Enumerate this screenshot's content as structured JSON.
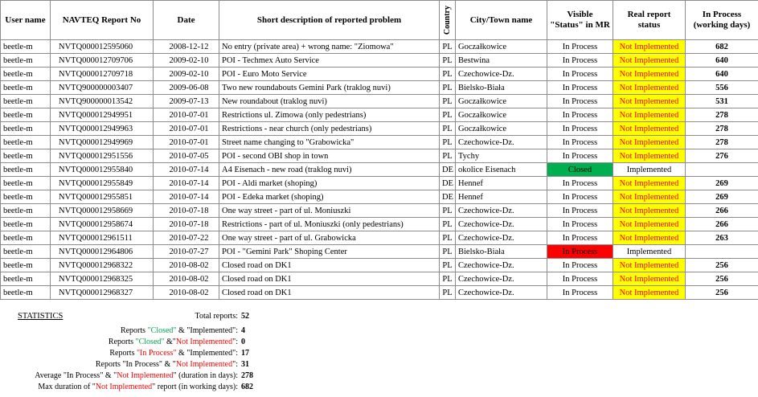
{
  "table": {
    "headers": [
      "User name",
      "NAVTEQ Report No",
      "Date",
      "Short description of reported problem",
      "Country",
      "City/Town name",
      "Visible \"Status\" in MR",
      "Real report status",
      "In Process (working days)"
    ],
    "rows": [
      {
        "cells": [
          "beetle-m",
          "NVTQ000012595060",
          "2008-12-12",
          "No entry (private area) + wrong name: \"Ziomowa\"",
          "PL",
          "Goczałkowice",
          "In Process",
          "Not Implemented",
          682
        ],
        "real_highlight": true
      },
      {
        "cells": [
          "beetle-m",
          "NVTQ000012709706",
          "2009-02-10",
          "POI - Techmex Auto Service",
          "PL",
          "Bestwina",
          "In Process",
          "Not Implemented",
          640
        ],
        "real_highlight": true
      },
      {
        "cells": [
          "beetle-m",
          "NVTQ000012709718",
          "2009-02-10",
          "POI - Euro Moto Service",
          "PL",
          "Czechowice-Dz.",
          "In Process",
          "Not Implemented",
          640
        ],
        "real_highlight": true
      },
      {
        "cells": [
          "beetle-m",
          "NVTQ900000003407",
          "2009-06-08",
          "Two new roundabouts Gemini Park (traklog nuvi)",
          "PL",
          "Bielsko-Biała",
          "In Process",
          "Not Implemented",
          556
        ],
        "real_highlight": true
      },
      {
        "cells": [
          "beetle-m",
          "NVTQ900000013542",
          "2009-07-13",
          "New roundabout (traklog nuvi)",
          "PL",
          "Goczałkowice",
          "In Process",
          "Not Implemented",
          531
        ],
        "real_highlight": true
      },
      {
        "cells": [
          "beetle-m",
          "NVTQ000012949951",
          "2010-07-01",
          "Restrictions ul. Zimowa (only pedestrians)",
          "PL",
          "Goczałkowice",
          "In Process",
          "Not Implemented",
          278
        ],
        "real_highlight": true
      },
      {
        "cells": [
          "beetle-m",
          "NVTQ000012949963",
          "2010-07-01",
          "Restrictions - near church (only pedestrians)",
          "PL",
          "Goczałkowice",
          "In Process",
          "Not Implemented",
          278
        ],
        "real_highlight": true
      },
      {
        "cells": [
          "beetle-m",
          "NVTQ000012949969",
          "2010-07-01",
          "Street name changing to \"Grabowicka\"",
          "PL",
          "Czechowice-Dz.",
          "In Process",
          "Not Implemented",
          278
        ],
        "real_highlight": true
      },
      {
        "cells": [
          "beetle-m",
          "NVTQ000012951556",
          "2010-07-05",
          "POI - second OBI shop in town",
          "PL",
          "Tychy",
          "In Process",
          "Not Implemented",
          276
        ],
        "real_highlight": true
      },
      {
        "cells": [
          "beetle-m",
          "NVTQ000012955840",
          "2010-07-14",
          "A4 Eisenach - new road (traklog nuvi)",
          "DE",
          "okolice Eisenach",
          "Closed",
          "Implemented",
          null
        ],
        "mr_color": "#00b050",
        "real_highlight": false
      },
      {
        "cells": [
          "beetle-m",
          "NVTQ000012955849",
          "2010-07-14",
          "POI - Aldi market (shoping)",
          "DE",
          "Hennef",
          "In Process",
          "Not Implemented",
          269
        ],
        "real_highlight": true
      },
      {
        "cells": [
          "beetle-m",
          "NVTQ000012955851",
          "2010-07-14",
          "POI - Edeka market (shoping)",
          "DE",
          "Hennef",
          "In Process",
          "Not Implemented",
          269
        ],
        "real_highlight": true
      },
      {
        "cells": [
          "beetle-m",
          "NVTQ000012958669",
          "2010-07-18",
          "One way street - part of ul. Moniuszki",
          "PL",
          "Czechowice-Dz.",
          "In Process",
          "Not Implemented",
          266
        ],
        "real_highlight": true
      },
      {
        "cells": [
          "beetle-m",
          "NVTQ000012958674",
          "2010-07-18",
          "Restrictions  - part of ul. Moniuszki (only pedestrians)",
          "PL",
          "Czechowice-Dz.",
          "In Process",
          "Not Implemented",
          266
        ],
        "real_highlight": true
      },
      {
        "cells": [
          "beetle-m",
          "NVTQ000012961511",
          "2010-07-22",
          "One way street - part of ul. Grabowicka",
          "PL",
          "Czechowice-Dz.",
          "In Process",
          "Not Implemented",
          263
        ],
        "real_highlight": true
      },
      {
        "cells": [
          "beetle-m",
          "NVTQ000012964806",
          "2010-07-27",
          "POI - \"Gemini Park\" Shoping Center",
          "PL",
          "Bielsko-Biała",
          "In Process",
          "Implemented",
          null
        ],
        "mr_color": "#ff0000",
        "real_highlight": false
      },
      {
        "cells": [
          "beetle-m",
          "NVTQ000012968322",
          "2010-08-02",
          "Closed road on DK1",
          "PL",
          "Czechowice-Dz.",
          "In Process",
          "Not Implemented",
          256
        ],
        "real_highlight": true
      },
      {
        "cells": [
          "beetle-m",
          "NVTQ000012968325",
          "2010-08-02",
          "Closed road on DK1",
          "PL",
          "Czechowice-Dz.",
          "In Process",
          "Not Implemented",
          256
        ],
        "real_highlight": true
      },
      {
        "cells": [
          "beetle-m",
          "NVTQ000012968327",
          "2010-08-02",
          "Closed road on DK1",
          "PL",
          "Czechowice-Dz.",
          "In Process",
          "Not Implemented",
          256
        ],
        "real_highlight": true
      }
    ]
  },
  "statistics": {
    "title": "STATISTICS",
    "total": {
      "label": "Total reports:",
      "value": 52
    },
    "items": [
      {
        "parts": [
          {
            "text": "Reports ",
            "color": "#000000"
          },
          {
            "text": "\"Closed\"",
            "color": "#00a050"
          },
          {
            "text": " & \"Implemented\":",
            "color": "#000000"
          }
        ],
        "value": 4
      },
      {
        "parts": [
          {
            "text": "Reports ",
            "color": "#000000"
          },
          {
            "text": "\"Closed\"",
            "color": "#00a050"
          },
          {
            "text": " &\"",
            "color": "#000000"
          },
          {
            "text": "Not Implemented",
            "color": "#ff0000"
          },
          {
            "text": "\":",
            "color": "#000000"
          }
        ],
        "value": 0
      },
      {
        "parts": [
          {
            "text": "Reports ",
            "color": "#000000"
          },
          {
            "text": "\"In Process\"",
            "color": "#ff0000"
          },
          {
            "text": " & \"Implemented\":",
            "color": "#000000"
          }
        ],
        "value": 17
      },
      {
        "parts": [
          {
            "text": "Reports \"In Process\" & \"",
            "color": "#000000"
          },
          {
            "text": "Not Implemented",
            "color": "#ff0000"
          },
          {
            "text": "\":",
            "color": "#000000"
          }
        ],
        "value": 31
      },
      {
        "parts": [
          {
            "text": "Average \"In Process\" & \"",
            "color": "#000000"
          },
          {
            "text": "Not Implemented",
            "color": "#ff0000"
          },
          {
            "text": "\" (duration in days):",
            "color": "#000000"
          }
        ],
        "value": 278
      },
      {
        "parts": [
          {
            "text": "Max duration of \"",
            "color": "#000000"
          },
          {
            "text": "Not Implemented",
            "color": "#ff0000"
          },
          {
            "text": "\" report (in working days):",
            "color": "#000000"
          }
        ],
        "value": 682
      }
    ]
  }
}
